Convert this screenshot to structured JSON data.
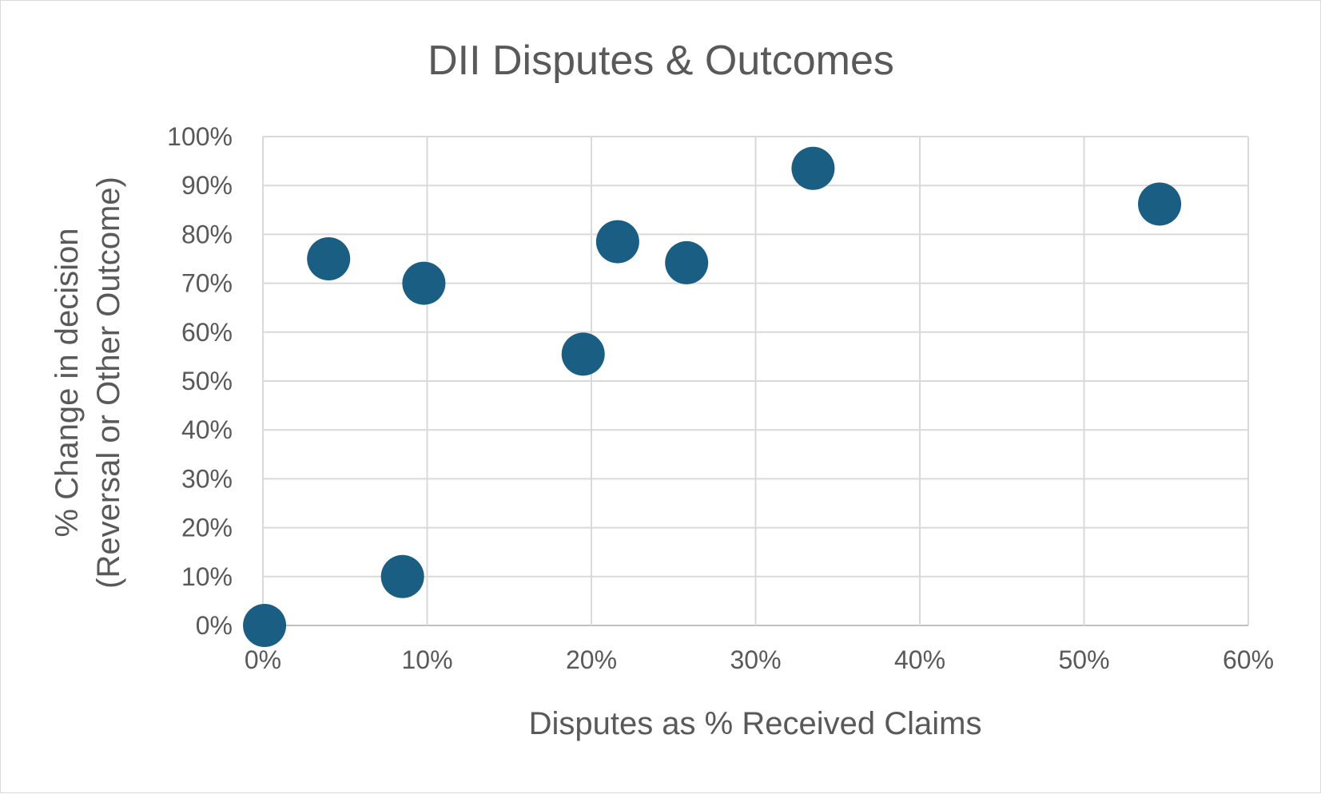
{
  "chart_data": {
    "type": "scatter",
    "title": "DII Disputes & Outcomes",
    "xlabel": "Disputes as % Received Claims",
    "ylabel": [
      "% Change in decision",
      "(Reversal or Other Outcome)"
    ],
    "xlim": [
      0,
      60
    ],
    "ylim": [
      0,
      100
    ],
    "x_ticks": [
      0,
      10,
      20,
      30,
      40,
      50,
      60
    ],
    "y_ticks": [
      0,
      10,
      20,
      30,
      40,
      50,
      60,
      70,
      80,
      90,
      100
    ],
    "tick_suffix": "%",
    "grid": true,
    "legend": "none",
    "marker_color": "#1a5e84",
    "points": [
      {
        "x": 0.1,
        "y": 0
      },
      {
        "x": 8.5,
        "y": 10
      },
      {
        "x": 4,
        "y": 75
      },
      {
        "x": 9.8,
        "y": 70
      },
      {
        "x": 19.5,
        "y": 55.5
      },
      {
        "x": 21.6,
        "y": 78.5
      },
      {
        "x": 25.8,
        "y": 74.2
      },
      {
        "x": 33.5,
        "y": 93.5
      },
      {
        "x": 54.6,
        "y": 86.2
      }
    ]
  }
}
